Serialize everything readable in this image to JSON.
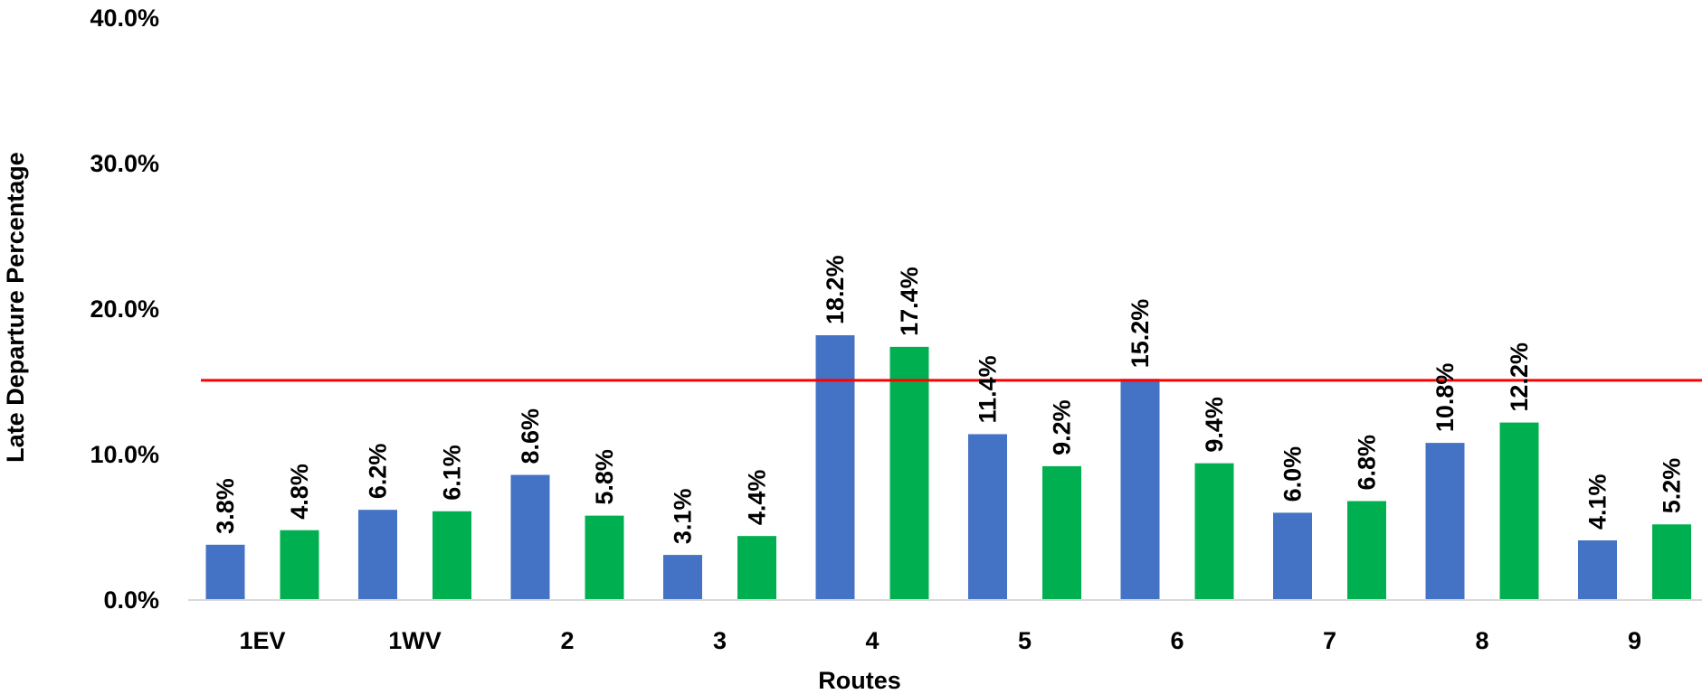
{
  "chart_data": {
    "type": "bar",
    "title": "",
    "xlabel": "Routes",
    "ylabel": "Late Departure Percentage",
    "categories": [
      "1EV",
      "1WV",
      "2",
      "3",
      "4",
      "5",
      "6",
      "7",
      "8",
      "9"
    ],
    "series": [
      {
        "color": "#4472C4",
        "values": [
          3.8,
          6.2,
          8.6,
          3.1,
          18.2,
          11.4,
          15.2,
          6.0,
          10.8,
          4.1
        ],
        "labels": [
          "3.8%",
          "6.2%",
          "8.6%",
          "3.1%",
          "18.2%",
          "11.4%",
          "15.2%",
          "6.0%",
          "10.8%",
          "4.1%"
        ]
      },
      {
        "color": "#00B050",
        "values": [
          4.8,
          6.1,
          5.8,
          4.4,
          17.4,
          9.2,
          9.4,
          6.8,
          12.2,
          5.2
        ],
        "labels": [
          "4.8%",
          "6.1%",
          "5.8%",
          "4.4%",
          "17.4%",
          "9.2%",
          "9.4%",
          "6.8%",
          "12.2%",
          "5.2%"
        ]
      }
    ],
    "ylim": [
      0,
      40
    ],
    "yticks": [
      0,
      10,
      20,
      30,
      40
    ],
    "ytick_labels": [
      "0.0%",
      "10.0%",
      "20.0%",
      "30.0%",
      "40.0%"
    ],
    "threshold_line": {
      "value": 15.1,
      "color": "#FF0000"
    },
    "grid": false,
    "legend": "none"
  }
}
